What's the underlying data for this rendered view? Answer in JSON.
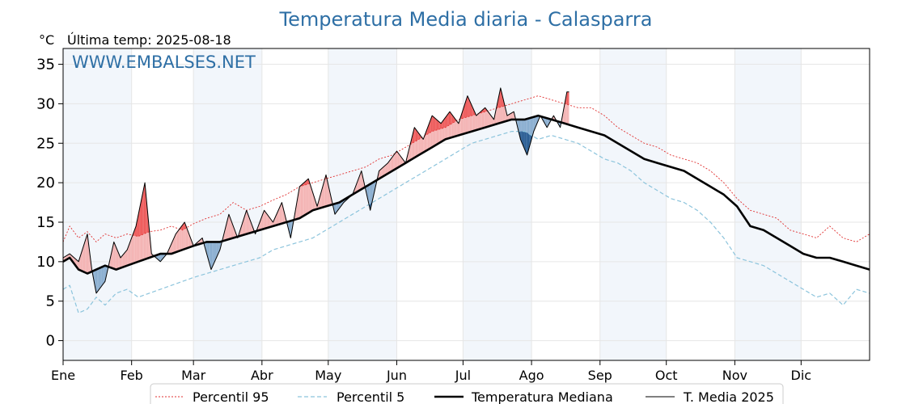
{
  "header": {
    "title": "Temperatura Media diaria - Calasparra",
    "unit": "°C",
    "last_temp": "Última temp: 2025-08-18",
    "watermark": "WWW.EMBALSES.NET"
  },
  "chart_data": {
    "type": "line",
    "title": "Temperatura Media diaria - Calasparra",
    "ylabel": "°C",
    "ylim": [
      -2.5,
      37
    ],
    "yticks": [
      0,
      5,
      10,
      15,
      20,
      25,
      30,
      35
    ],
    "xlim": [
      1,
      366
    ],
    "month_labels": [
      "Ene",
      "Feb",
      "Mar",
      "Abr",
      "May",
      "Jun",
      "Jul",
      "Ago",
      "Sep",
      "Oct",
      "Nov",
      "Dic"
    ],
    "month_start_days": [
      1,
      32,
      60,
      91,
      121,
      152,
      182,
      213,
      244,
      274,
      305,
      335
    ],
    "legend_placement": "bottom",
    "grid": true,
    "colors": {
      "p95": "#e03030",
      "p5": "#8cc4dc",
      "median": "#000000",
      "current": "#000000",
      "above_fill": "#f4b4b4",
      "above_p95_fill": "#ee5b5b",
      "below_fill": "#8aaed0",
      "below_p5_fill": "#2b5e94",
      "band": "#f2f6fb"
    },
    "series": [
      {
        "key": "p95",
        "name": "Percentil 95",
        "x": [
          1,
          4,
          8,
          12,
          16,
          20,
          25,
          30,
          35,
          40,
          45,
          50,
          55,
          60,
          66,
          72,
          78,
          84,
          90,
          96,
          102,
          108,
          114,
          120,
          126,
          132,
          138,
          144,
          150,
          156,
          162,
          168,
          174,
          180,
          186,
          192,
          198,
          204,
          210,
          216,
          222,
          228,
          234,
          240,
          246,
          252,
          258,
          264,
          270,
          276,
          282,
          288,
          294,
          300,
          306,
          312,
          318,
          324,
          330,
          336,
          342,
          348,
          354,
          360,
          366
        ],
        "values": [
          12.5,
          14.5,
          13.0,
          13.8,
          12.5,
          13.5,
          13.0,
          13.5,
          13.2,
          13.8,
          14.0,
          14.5,
          14.0,
          14.8,
          15.5,
          16.0,
          17.5,
          16.5,
          17.0,
          17.8,
          18.5,
          19.5,
          20.0,
          20.5,
          21.0,
          21.5,
          22.0,
          23.0,
          23.5,
          24.5,
          25.5,
          26.5,
          27.0,
          28.0,
          28.5,
          29.0,
          29.5,
          30.0,
          30.5,
          31.0,
          30.5,
          30.0,
          29.5,
          29.5,
          28.5,
          27.0,
          26.0,
          25.0,
          24.5,
          23.5,
          23.0,
          22.5,
          21.5,
          20.0,
          18.0,
          16.5,
          16.0,
          15.5,
          14.0,
          13.5,
          13.0,
          14.5,
          13.0,
          12.5,
          13.5
        ]
      },
      {
        "key": "p5",
        "name": "Percentil 5",
        "x": [
          1,
          4,
          8,
          12,
          16,
          20,
          25,
          30,
          35,
          40,
          45,
          50,
          55,
          60,
          66,
          72,
          78,
          84,
          90,
          96,
          102,
          108,
          114,
          120,
          126,
          132,
          138,
          144,
          150,
          156,
          162,
          168,
          174,
          180,
          186,
          192,
          198,
          204,
          210,
          216,
          222,
          228,
          234,
          240,
          246,
          252,
          258,
          264,
          270,
          276,
          282,
          288,
          294,
          300,
          306,
          312,
          318,
          324,
          330,
          336,
          342,
          348,
          354,
          360,
          366
        ],
        "values": [
          6.5,
          7.0,
          3.5,
          4.0,
          5.5,
          4.5,
          6.0,
          6.5,
          5.5,
          6.0,
          6.5,
          7.0,
          7.5,
          8.0,
          8.5,
          9.0,
          9.5,
          10.0,
          10.5,
          11.5,
          12.0,
          12.5,
          13.0,
          14.0,
          15.0,
          16.0,
          17.0,
          18.0,
          19.0,
          20.0,
          21.0,
          22.0,
          23.0,
          24.0,
          25.0,
          25.5,
          26.0,
          26.5,
          26.5,
          25.5,
          26.0,
          25.5,
          25.0,
          24.0,
          23.0,
          22.5,
          21.5,
          20.0,
          19.0,
          18.0,
          17.5,
          16.5,
          15.0,
          13.0,
          10.5,
          10.0,
          9.5,
          8.5,
          7.5,
          6.5,
          5.5,
          6.0,
          4.5,
          6.5,
          6.0
        ]
      },
      {
        "key": "median",
        "name": "Temperatura Mediana",
        "x": [
          1,
          4,
          8,
          12,
          16,
          20,
          25,
          30,
          35,
          40,
          45,
          50,
          55,
          60,
          66,
          72,
          78,
          84,
          90,
          96,
          102,
          108,
          114,
          120,
          126,
          132,
          138,
          144,
          150,
          156,
          162,
          168,
          174,
          180,
          186,
          192,
          198,
          204,
          210,
          216,
          222,
          228,
          234,
          240,
          246,
          252,
          258,
          264,
          270,
          276,
          282,
          288,
          294,
          300,
          306,
          312,
          318,
          324,
          330,
          336,
          342,
          348,
          354,
          360,
          366
        ],
        "values": [
          10.0,
          10.5,
          9.0,
          8.5,
          9.0,
          9.5,
          9.0,
          9.5,
          10.0,
          10.5,
          11.0,
          11.0,
          11.5,
          12.0,
          12.5,
          12.5,
          13.0,
          13.5,
          14.0,
          14.5,
          15.0,
          15.5,
          16.5,
          17.0,
          17.5,
          18.5,
          19.5,
          20.5,
          21.5,
          22.5,
          23.5,
          24.5,
          25.5,
          26.0,
          26.5,
          27.0,
          27.5,
          28.0,
          28.0,
          28.5,
          28.0,
          27.5,
          27.0,
          26.5,
          26.0,
          25.0,
          24.0,
          23.0,
          22.5,
          22.0,
          21.5,
          20.5,
          19.5,
          18.5,
          17.0,
          14.5,
          14.0,
          13.0,
          12.0,
          11.0,
          10.5,
          10.5,
          10.0,
          9.5,
          9.0
        ]
      },
      {
        "key": "current",
        "name": "T. Media 2025",
        "x": [
          1,
          4,
          8,
          12,
          14,
          16,
          20,
          24,
          27,
          30,
          34,
          38,
          41,
          45,
          48,
          52,
          56,
          60,
          64,
          68,
          72,
          76,
          80,
          84,
          88,
          92,
          96,
          100,
          104,
          108,
          112,
          116,
          120,
          124,
          128,
          132,
          136,
          140,
          144,
          148,
          152,
          156,
          160,
          164,
          168,
          172,
          176,
          180,
          184,
          188,
          192,
          196,
          199,
          202,
          205,
          208,
          211,
          214,
          217,
          220,
          223,
          226,
          229,
          230
        ],
        "values": [
          10.5,
          11.0,
          10.0,
          13.5,
          9.0,
          6.0,
          7.5,
          12.5,
          10.5,
          11.5,
          14.5,
          20.0,
          11.0,
          10.0,
          11.0,
          13.5,
          15.0,
          12.0,
          13.0,
          9.0,
          11.5,
          16.0,
          13.0,
          16.5,
          13.5,
          16.5,
          15.0,
          17.5,
          13.0,
          19.5,
          20.5,
          17.0,
          21.0,
          16.0,
          17.5,
          18.5,
          21.5,
          16.5,
          21.5,
          22.5,
          24.0,
          22.5,
          27.0,
          25.5,
          28.5,
          27.5,
          29.0,
          27.5,
          31.0,
          28.5,
          29.5,
          28.0,
          32.0,
          28.5,
          29.0,
          25.5,
          23.5,
          26.5,
          28.5,
          27.0,
          28.5,
          27.0,
          31.5,
          31.5
        ]
      }
    ]
  },
  "legend": {
    "p95": "Percentil 95",
    "p5": "Percentil 5",
    "median": "Temperatura Mediana",
    "current": "T. Media 2025"
  }
}
